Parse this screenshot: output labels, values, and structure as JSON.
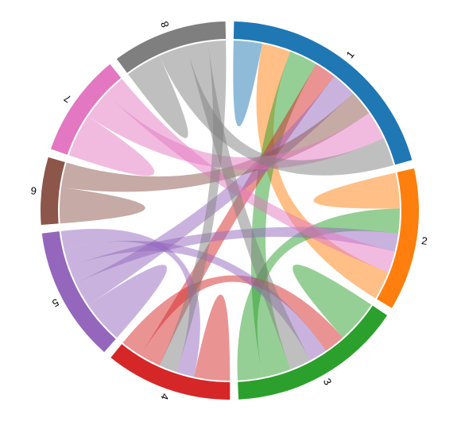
{
  "chart_data": {
    "type": "chord",
    "nodes": [
      {
        "name": "1",
        "color": "#1f77b4"
      },
      {
        "name": "2",
        "color": "#ff7f0e"
      },
      {
        "name": "3",
        "color": "#2ca02c"
      },
      {
        "name": "4",
        "color": "#d62728"
      },
      {
        "name": "5",
        "color": "#9467bd"
      },
      {
        "name": "6",
        "color": "#8c564b"
      },
      {
        "name": "7",
        "color": "#e377c2"
      },
      {
        "name": "8",
        "color": "#7f7f7f"
      }
    ],
    "links": [
      {
        "source": "1",
        "target": "1",
        "value": 4
      },
      {
        "source": "1",
        "target": "2",
        "value": 8
      },
      {
        "source": "1",
        "target": "3",
        "value": 8
      },
      {
        "source": "1",
        "target": "4",
        "value": 6
      },
      {
        "source": "1",
        "target": "5",
        "value": 7
      },
      {
        "source": "1",
        "target": "6",
        "value": 7
      },
      {
        "source": "1",
        "target": "7",
        "value": 8
      },
      {
        "source": "1",
        "target": "8",
        "value": 8
      },
      {
        "source": "2",
        "target": "2",
        "value": 5
      },
      {
        "source": "2",
        "target": "3",
        "value": 7
      },
      {
        "source": "2",
        "target": "5",
        "value": 5
      },
      {
        "source": "2",
        "target": "7",
        "value": 6
      },
      {
        "source": "3",
        "target": "3",
        "value": 6
      },
      {
        "source": "3",
        "target": "4",
        "value": 6
      },
      {
        "source": "3",
        "target": "5",
        "value": 5
      },
      {
        "source": "3",
        "target": "8",
        "value": 6
      },
      {
        "source": "4",
        "target": "4",
        "value": 5
      },
      {
        "source": "4",
        "target": "5",
        "value": 5
      },
      {
        "source": "4",
        "target": "8",
        "value": 5
      },
      {
        "source": "5",
        "target": "5",
        "value": 6
      },
      {
        "source": "6",
        "target": "6",
        "value": 5
      },
      {
        "source": "7",
        "target": "7",
        "value": 6
      },
      {
        "source": "8",
        "target": "8",
        "value": 5
      }
    ]
  }
}
